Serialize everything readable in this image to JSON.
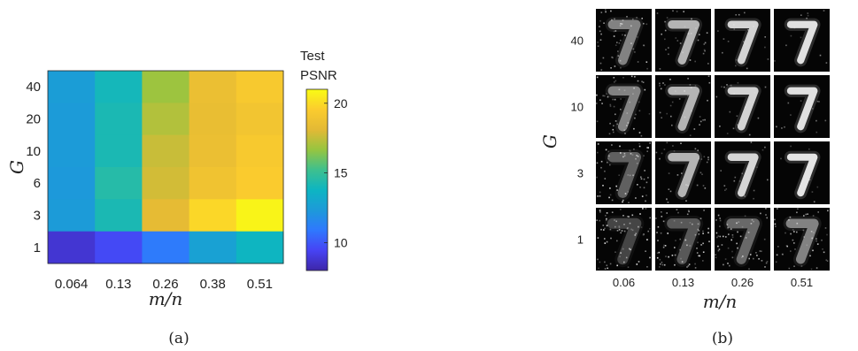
{
  "panel_a": {
    "caption": "(a)",
    "colorbar_title_line1": "Test",
    "colorbar_title_line2": "PSNR",
    "colorbar_ticks": [
      "20",
      "15",
      "10"
    ],
    "colorbar_tick_values": [
      20,
      15,
      10
    ],
    "colorbar_range": [
      8,
      21
    ],
    "colormap": [
      "#3e26a8",
      "#4743f4",
      "#2f78fe",
      "#1d9ad9",
      "#0db5c2",
      "#3ec08e",
      "#96c540",
      "#e3b935",
      "#fbcc2e",
      "#f9fb14"
    ]
  },
  "panel_b": {
    "caption": "(b)",
    "xlabel": "m/n",
    "ylabel": "G",
    "x_ticks": [
      "0.06",
      "0.13",
      "0.26",
      "0.51"
    ],
    "y_ticks": [
      "40",
      "10",
      "3",
      "1"
    ],
    "image_content": "7"
  },
  "chart_data": [
    {
      "type": "heatmap",
      "xlabel": "m/n",
      "ylabel": "G",
      "x_categories": [
        "0.064",
        "0.13",
        "0.26",
        "0.38",
        "0.51"
      ],
      "y_categories": [
        "40",
        "20",
        "10",
        "6",
        "3",
        "1"
      ],
      "values": [
        [
          12.5,
          14.0,
          16.8,
          18.6,
          19.3
        ],
        [
          12.4,
          14.2,
          17.2,
          18.5,
          19.0
        ],
        [
          12.4,
          14.2,
          17.6,
          18.6,
          19.3
        ],
        [
          12.3,
          14.5,
          17.8,
          18.9,
          19.5
        ],
        [
          12.4,
          14.2,
          18.3,
          19.9,
          20.8
        ],
        [
          8.8,
          9.6,
          11.0,
          12.7,
          13.8
        ]
      ],
      "colorbar_label": "Test PSNR",
      "colorbar_range": [
        8,
        21
      ]
    }
  ]
}
